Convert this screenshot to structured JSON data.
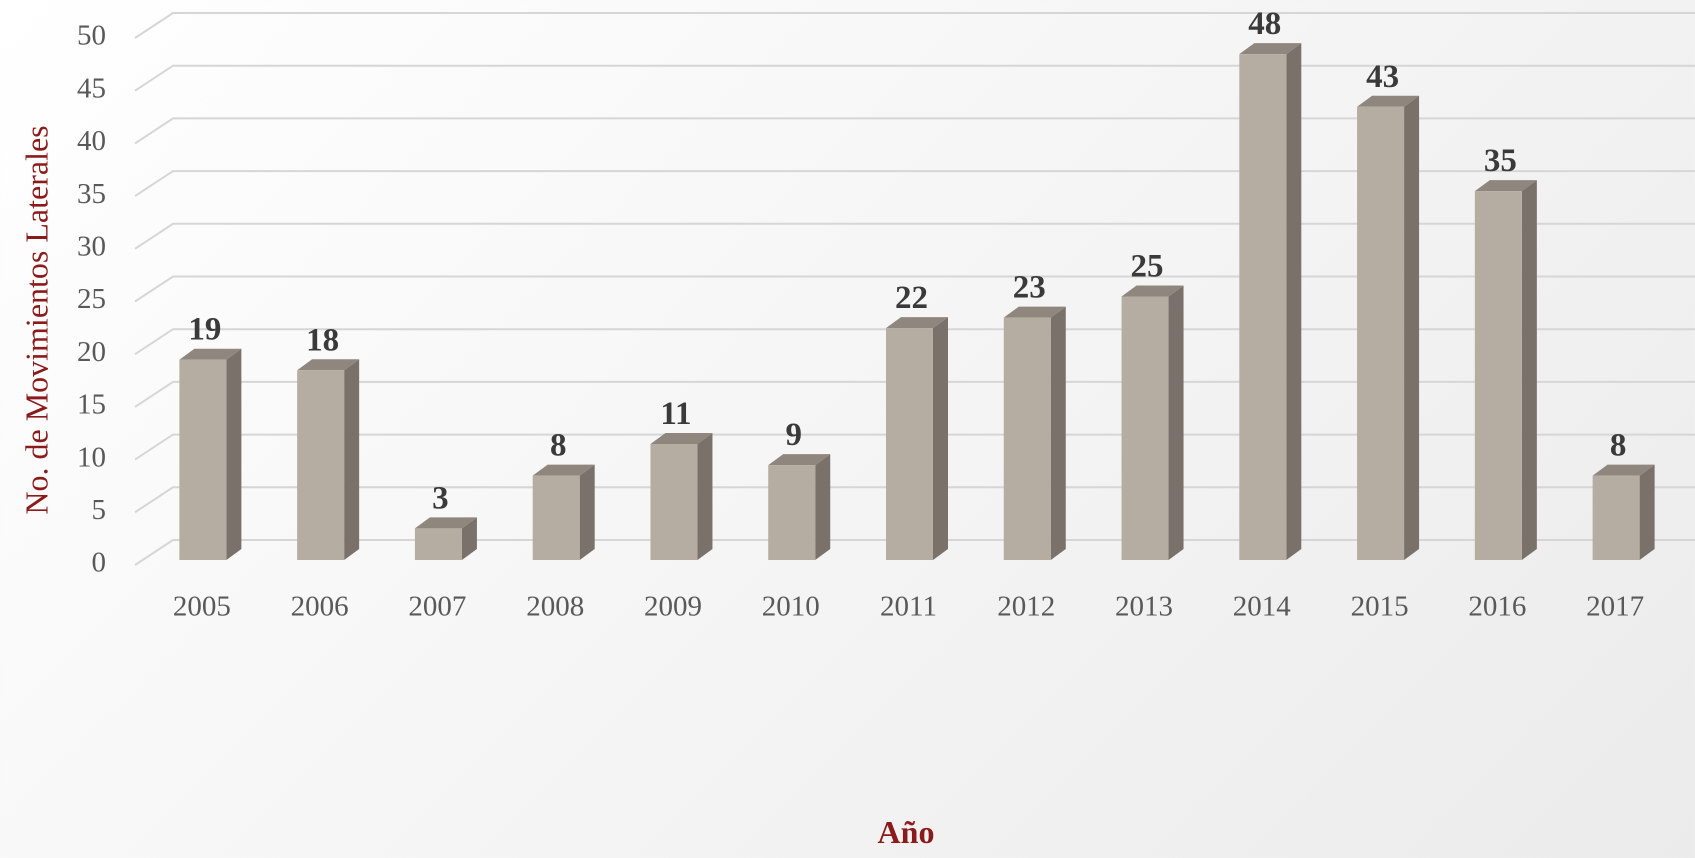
{
  "chart_data": {
    "type": "bar3d",
    "x_label": "Año",
    "y_label": "No. de Movimientos Laterales",
    "categories": [
      "2005",
      "2006",
      "2007",
      "2008",
      "2009",
      "2010",
      "2011",
      "2012",
      "2013",
      "2014",
      "2015",
      "2016",
      "2017"
    ],
    "values": [
      19,
      18,
      3,
      8,
      11,
      9,
      22,
      23,
      25,
      48,
      43,
      35,
      8
    ],
    "color": "#b5aca2",
    "side_color": "#7a716a",
    "top_color": "#8f867e",
    "ylim": [
      0,
      50
    ],
    "yticks": [
      0,
      5,
      10,
      15,
      20,
      25,
      30,
      35,
      40,
      45,
      50
    ],
    "grid": true,
    "data_labels": true
  }
}
